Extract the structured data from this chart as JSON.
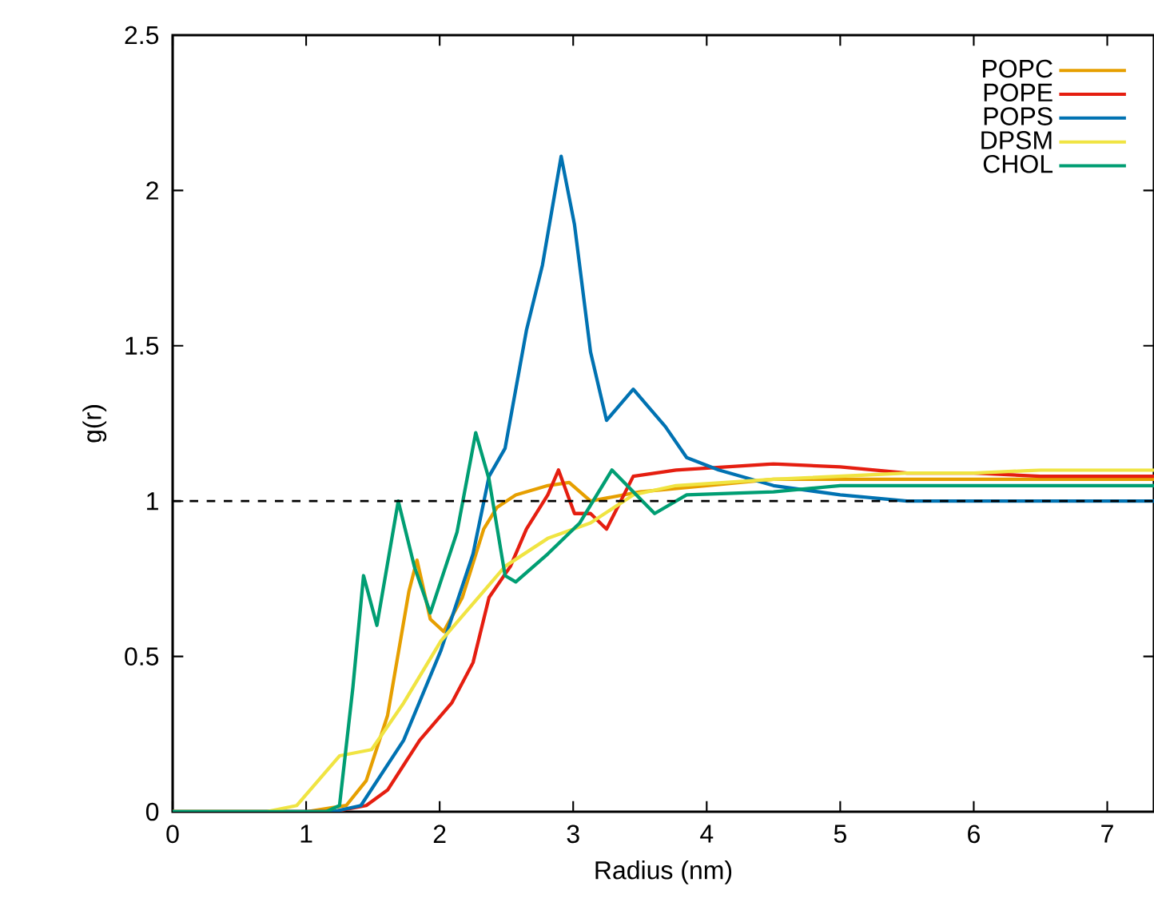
{
  "chart_data": {
    "type": "line",
    "xlabel": "Radius (nm)",
    "ylabel": "g(r)",
    "xlim": [
      0,
      7.35
    ],
    "ylim": [
      0,
      2.5
    ],
    "xticks": [
      0,
      1,
      2,
      3,
      4,
      5,
      6,
      7
    ],
    "yticks": [
      0,
      0.5,
      1,
      1.5,
      2,
      2.5
    ],
    "legend": "top right",
    "ref_lines": [
      {
        "axis": "y",
        "value": 1,
        "color": "#000000",
        "line_style": "dashed"
      }
    ],
    "series": [
      {
        "name": "POPC",
        "color": "#e69f00",
        "x": [
          0,
          1.0,
          1.3,
          1.45,
          1.61,
          1.77,
          1.83,
          1.93,
          2.03,
          2.17,
          2.33,
          2.43,
          2.57,
          2.81,
          2.97,
          3.13,
          3.5,
          4.0,
          4.5,
          5.0,
          5.5,
          6.0,
          6.5,
          7.0,
          7.35
        ],
        "values": [
          0,
          0,
          0.02,
          0.1,
          0.31,
          0.71,
          0.81,
          0.62,
          0.58,
          0.69,
          0.91,
          0.98,
          1.02,
          1.05,
          1.06,
          1.0,
          1.03,
          1.05,
          1.07,
          1.07,
          1.07,
          1.07,
          1.07,
          1.07,
          1.07
        ]
      },
      {
        "name": "POPE",
        "color": "#e51e10",
        "x": [
          0,
          1.2,
          1.45,
          1.61,
          1.85,
          2.09,
          2.25,
          2.37,
          2.53,
          2.65,
          2.81,
          2.89,
          3.01,
          3.13,
          3.25,
          3.45,
          3.77,
          4.5,
          5.0,
          5.5,
          6.0,
          6.5,
          7.0,
          7.35
        ],
        "values": [
          0,
          0,
          0.02,
          0.07,
          0.23,
          0.35,
          0.48,
          0.69,
          0.79,
          0.91,
          1.02,
          1.1,
          0.96,
          0.96,
          0.91,
          1.08,
          1.1,
          1.12,
          1.11,
          1.09,
          1.09,
          1.08,
          1.08,
          1.08
        ]
      },
      {
        "name": "POPS",
        "color": "#0072b2",
        "x": [
          0,
          1.2,
          1.41,
          1.73,
          2.01,
          2.25,
          2.37,
          2.49,
          2.65,
          2.77,
          2.91,
          3.01,
          3.13,
          3.25,
          3.45,
          3.69,
          3.85,
          4.09,
          4.5,
          5.0,
          5.5,
          6.0,
          6.5,
          7.0,
          7.35
        ],
        "values": [
          0,
          0,
          0.02,
          0.23,
          0.52,
          0.83,
          1.08,
          1.17,
          1.55,
          1.76,
          2.11,
          1.89,
          1.48,
          1.26,
          1.36,
          1.24,
          1.14,
          1.1,
          1.05,
          1.02,
          1.0,
          1.0,
          1.0,
          1.0,
          1.0
        ]
      },
      {
        "name": "DPSM",
        "color": "#f0e442",
        "x": [
          0,
          0.7,
          0.93,
          1.25,
          1.49,
          1.73,
          2.01,
          2.25,
          2.49,
          2.81,
          3.13,
          3.45,
          3.77,
          4.5,
          5.0,
          5.5,
          6.0,
          6.5,
          7.0,
          7.35
        ],
        "values": [
          0,
          0,
          0.02,
          0.18,
          0.2,
          0.35,
          0.55,
          0.67,
          0.79,
          0.88,
          0.93,
          1.02,
          1.05,
          1.07,
          1.08,
          1.09,
          1.09,
          1.1,
          1.1,
          1.1
        ]
      },
      {
        "name": "CHOL",
        "color": "#009e73",
        "x": [
          0,
          1.15,
          1.25,
          1.35,
          1.43,
          1.53,
          1.69,
          1.81,
          1.93,
          2.13,
          2.27,
          2.37,
          2.49,
          2.57,
          2.81,
          3.05,
          3.29,
          3.45,
          3.61,
          3.85,
          4.5,
          5.0,
          5.5,
          6.0,
          6.5,
          7.0,
          7.35
        ],
        "values": [
          0,
          0,
          0.02,
          0.4,
          0.76,
          0.6,
          1.0,
          0.79,
          0.64,
          0.9,
          1.22,
          1.07,
          0.76,
          0.74,
          0.83,
          0.93,
          1.1,
          1.03,
          0.96,
          1.02,
          1.03,
          1.05,
          1.05,
          1.05,
          1.05,
          1.05,
          1.05
        ]
      }
    ]
  }
}
